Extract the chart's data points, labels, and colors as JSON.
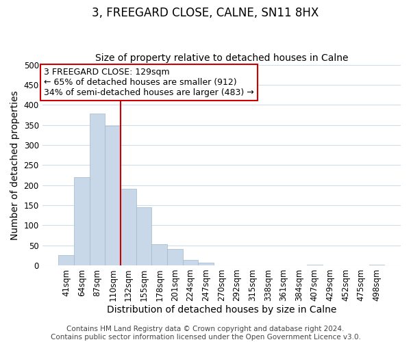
{
  "title": "3, FREEGARD CLOSE, CALNE, SN11 8HX",
  "subtitle": "Size of property relative to detached houses in Calne",
  "xlabel": "Distribution of detached houses by size in Calne",
  "ylabel": "Number of detached properties",
  "bar_labels": [
    "41sqm",
    "64sqm",
    "87sqm",
    "110sqm",
    "132sqm",
    "155sqm",
    "178sqm",
    "201sqm",
    "224sqm",
    "247sqm",
    "270sqm",
    "292sqm",
    "315sqm",
    "338sqm",
    "361sqm",
    "384sqm",
    "407sqm",
    "429sqm",
    "452sqm",
    "475sqm",
    "498sqm"
  ],
  "bar_values": [
    25,
    220,
    378,
    348,
    190,
    145,
    53,
    40,
    13,
    7,
    0,
    0,
    0,
    0,
    0,
    0,
    2,
    0,
    0,
    0,
    2
  ],
  "bar_color": "#c8d8e8",
  "bar_edge_color": "#a0b8cc",
  "vline_x_index": 4,
  "vline_color": "#cc0000",
  "annotation_line1": "3 FREEGARD CLOSE: 129sqm",
  "annotation_line2": "← 65% of detached houses are smaller (912)",
  "annotation_line3": "34% of semi-detached houses are larger (483) →",
  "annotation_box_color": "#ffffff",
  "annotation_box_edge_color": "#cc0000",
  "ylim": [
    0,
    500
  ],
  "yticks": [
    0,
    50,
    100,
    150,
    200,
    250,
    300,
    350,
    400,
    450,
    500
  ],
  "footer_line1": "Contains HM Land Registry data © Crown copyright and database right 2024.",
  "footer_line2": "Contains public sector information licensed under the Open Government Licence v3.0.",
  "title_fontsize": 12,
  "subtitle_fontsize": 10,
  "axis_label_fontsize": 10,
  "tick_fontsize": 8.5,
  "annotation_fontsize": 9,
  "footer_fontsize": 7.5,
  "background_color": "#ffffff",
  "grid_color": "#d0dce8"
}
